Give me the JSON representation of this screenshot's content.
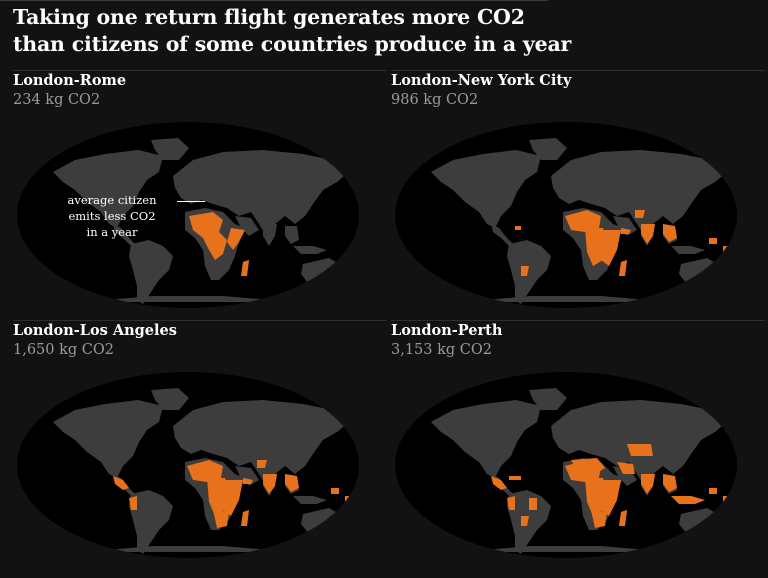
{
  "headline": "Taking one return flight generates more CO2 than citizens of some countries produce in a year",
  "colors": {
    "background": "#121212",
    "ocean": "#000000",
    "land": "#3d3d3d",
    "highlight": "#e8711c",
    "amount_text": "#9a9a9a"
  },
  "panels": [
    {
      "route": "London-Rome",
      "emissions": "234 kg CO2",
      "emissions_kg": 234,
      "annotation": [
        "average citizen",
        "emits less CO2",
        "in a year"
      ],
      "highlighted_regions": [
        "central-west-africa",
        "horn-of-africa",
        "madagascar"
      ]
    },
    {
      "route": "London-New York City",
      "emissions": "986 kg CO2",
      "emissions_kg": 986,
      "highlighted_regions": [
        "west-africa",
        "central-africa",
        "east-africa",
        "madagascar",
        "south-asia",
        "southeast-asia",
        "pacific-islands",
        "paraguay",
        "haiti",
        "afghanistan",
        "yemen"
      ]
    },
    {
      "route": "London-Los Angeles",
      "emissions": "1,650 kg CO2",
      "emissions_kg": 1650,
      "highlighted_regions": [
        "west-africa",
        "central-africa",
        "east-africa",
        "southern-africa",
        "madagascar",
        "south-asia",
        "southeast-asia",
        "pacific-islands",
        "central-america",
        "andes",
        "yemen",
        "afghanistan"
      ]
    },
    {
      "route": "London-Perth",
      "emissions": "3,153 kg CO2",
      "emissions_kg": 3153,
      "highlighted_regions": [
        "north-africa",
        "west-africa",
        "central-africa",
        "east-africa",
        "southern-africa",
        "madagascar",
        "middle-east",
        "central-asia",
        "south-asia",
        "southeast-asia",
        "indonesia",
        "pacific-islands",
        "central-america",
        "caribbean",
        "andes",
        "brazil",
        "paraguay"
      ]
    }
  ]
}
